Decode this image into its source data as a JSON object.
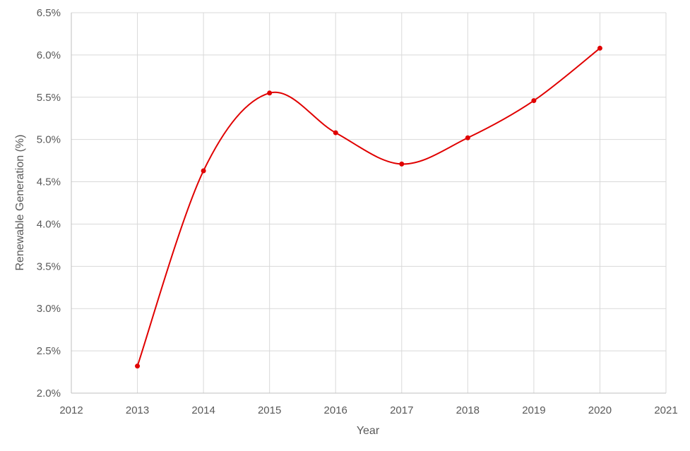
{
  "chart_data": {
    "type": "line",
    "title": "",
    "xlabel": "Year",
    "ylabel": "Renewable Generation (%)",
    "xlim": [
      2012,
      2021
    ],
    "ylim": [
      2.0,
      6.5
    ],
    "x_ticks": [
      2012,
      2013,
      2014,
      2015,
      2016,
      2017,
      2018,
      2019,
      2020,
      2021
    ],
    "y_ticks": [
      2.0,
      2.5,
      3.0,
      3.5,
      4.0,
      4.5,
      5.0,
      5.5,
      6.0,
      6.5
    ],
    "x_tick_labels": [
      "2012",
      "2013",
      "2014",
      "2015",
      "2016",
      "2017",
      "2018",
      "2019",
      "2020",
      "2021"
    ],
    "y_tick_labels": [
      "2.0%",
      "2.5%",
      "3.0%",
      "3.5%",
      "4.0%",
      "4.5%",
      "5.0%",
      "5.5%",
      "6.0%",
      "6.5%"
    ],
    "grid": true,
    "smooth": true,
    "series": [
      {
        "x": [
          2013,
          2014,
          2015,
          2016,
          2017,
          2018,
          2019,
          2020
        ],
        "y": [
          2.32,
          4.63,
          5.55,
          5.08,
          4.71,
          5.02,
          5.46,
          6.08
        ],
        "color": "#e00000"
      }
    ]
  }
}
